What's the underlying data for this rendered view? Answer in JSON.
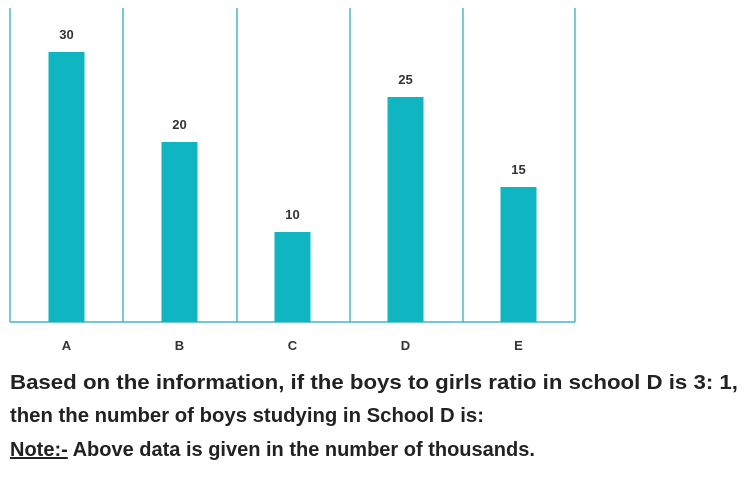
{
  "chart_data": {
    "type": "bar",
    "categories": [
      "A",
      "B",
      "C",
      "D",
      "E"
    ],
    "values": [
      30,
      20,
      10,
      25,
      15
    ],
    "color": "#0fb5c1",
    "ylim": [
      0,
      35
    ]
  },
  "question": {
    "line1": "Based on the information, if the boys to girls ratio in school D is 3: 1,",
    "line2": "then the number of boys studying in School D is:",
    "note_label": "Note:-",
    "note_text": "Above data is given in the number of thousands."
  }
}
